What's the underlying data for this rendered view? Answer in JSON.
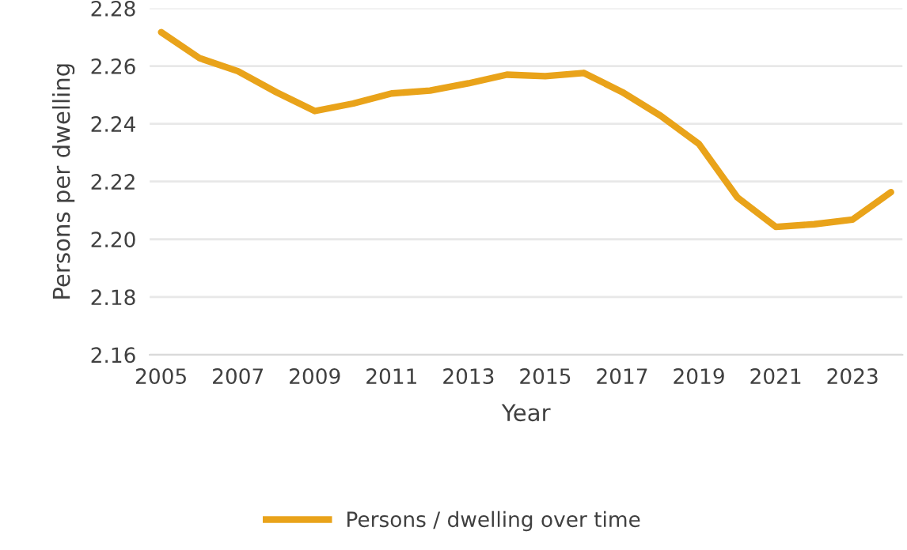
{
  "chart_data": {
    "type": "line",
    "xlabel": "Year",
    "ylabel": "Persons per dwelling",
    "categories": [
      "2005",
      null,
      "2007",
      null,
      "2009",
      null,
      "2011",
      null,
      "2013",
      null,
      "2015",
      null,
      "2017",
      null,
      "2019",
      null,
      "2021",
      null,
      "2023",
      null
    ],
    "series": [
      {
        "name": "Persons / dwelling over time",
        "color": "#e9a31a",
        "values": [
          2.2717,
          2.2627,
          2.2582,
          2.2509,
          2.2444,
          2.247,
          2.2505,
          2.2515,
          2.254,
          2.257,
          2.2565,
          2.2576,
          2.251,
          2.2428,
          2.233,
          2.2145,
          2.2043,
          2.2052,
          2.2068,
          2.2163
        ]
      }
    ],
    "ylim": [
      2.16,
      2.28
    ],
    "yticks": [
      {
        "value": 2.16,
        "label": "2.16"
      },
      {
        "value": 2.18,
        "label": "2.18"
      },
      {
        "value": 2.2,
        "label": "2.20"
      },
      {
        "value": 2.22,
        "label": "2.22"
      },
      {
        "value": 2.24,
        "label": "2.24"
      },
      {
        "value": 2.26,
        "label": "2.26"
      },
      {
        "value": 2.28,
        "label": "2.28"
      }
    ],
    "grid": "y",
    "legend": "bottom",
    "marker": "none",
    "line_style": "solid"
  }
}
